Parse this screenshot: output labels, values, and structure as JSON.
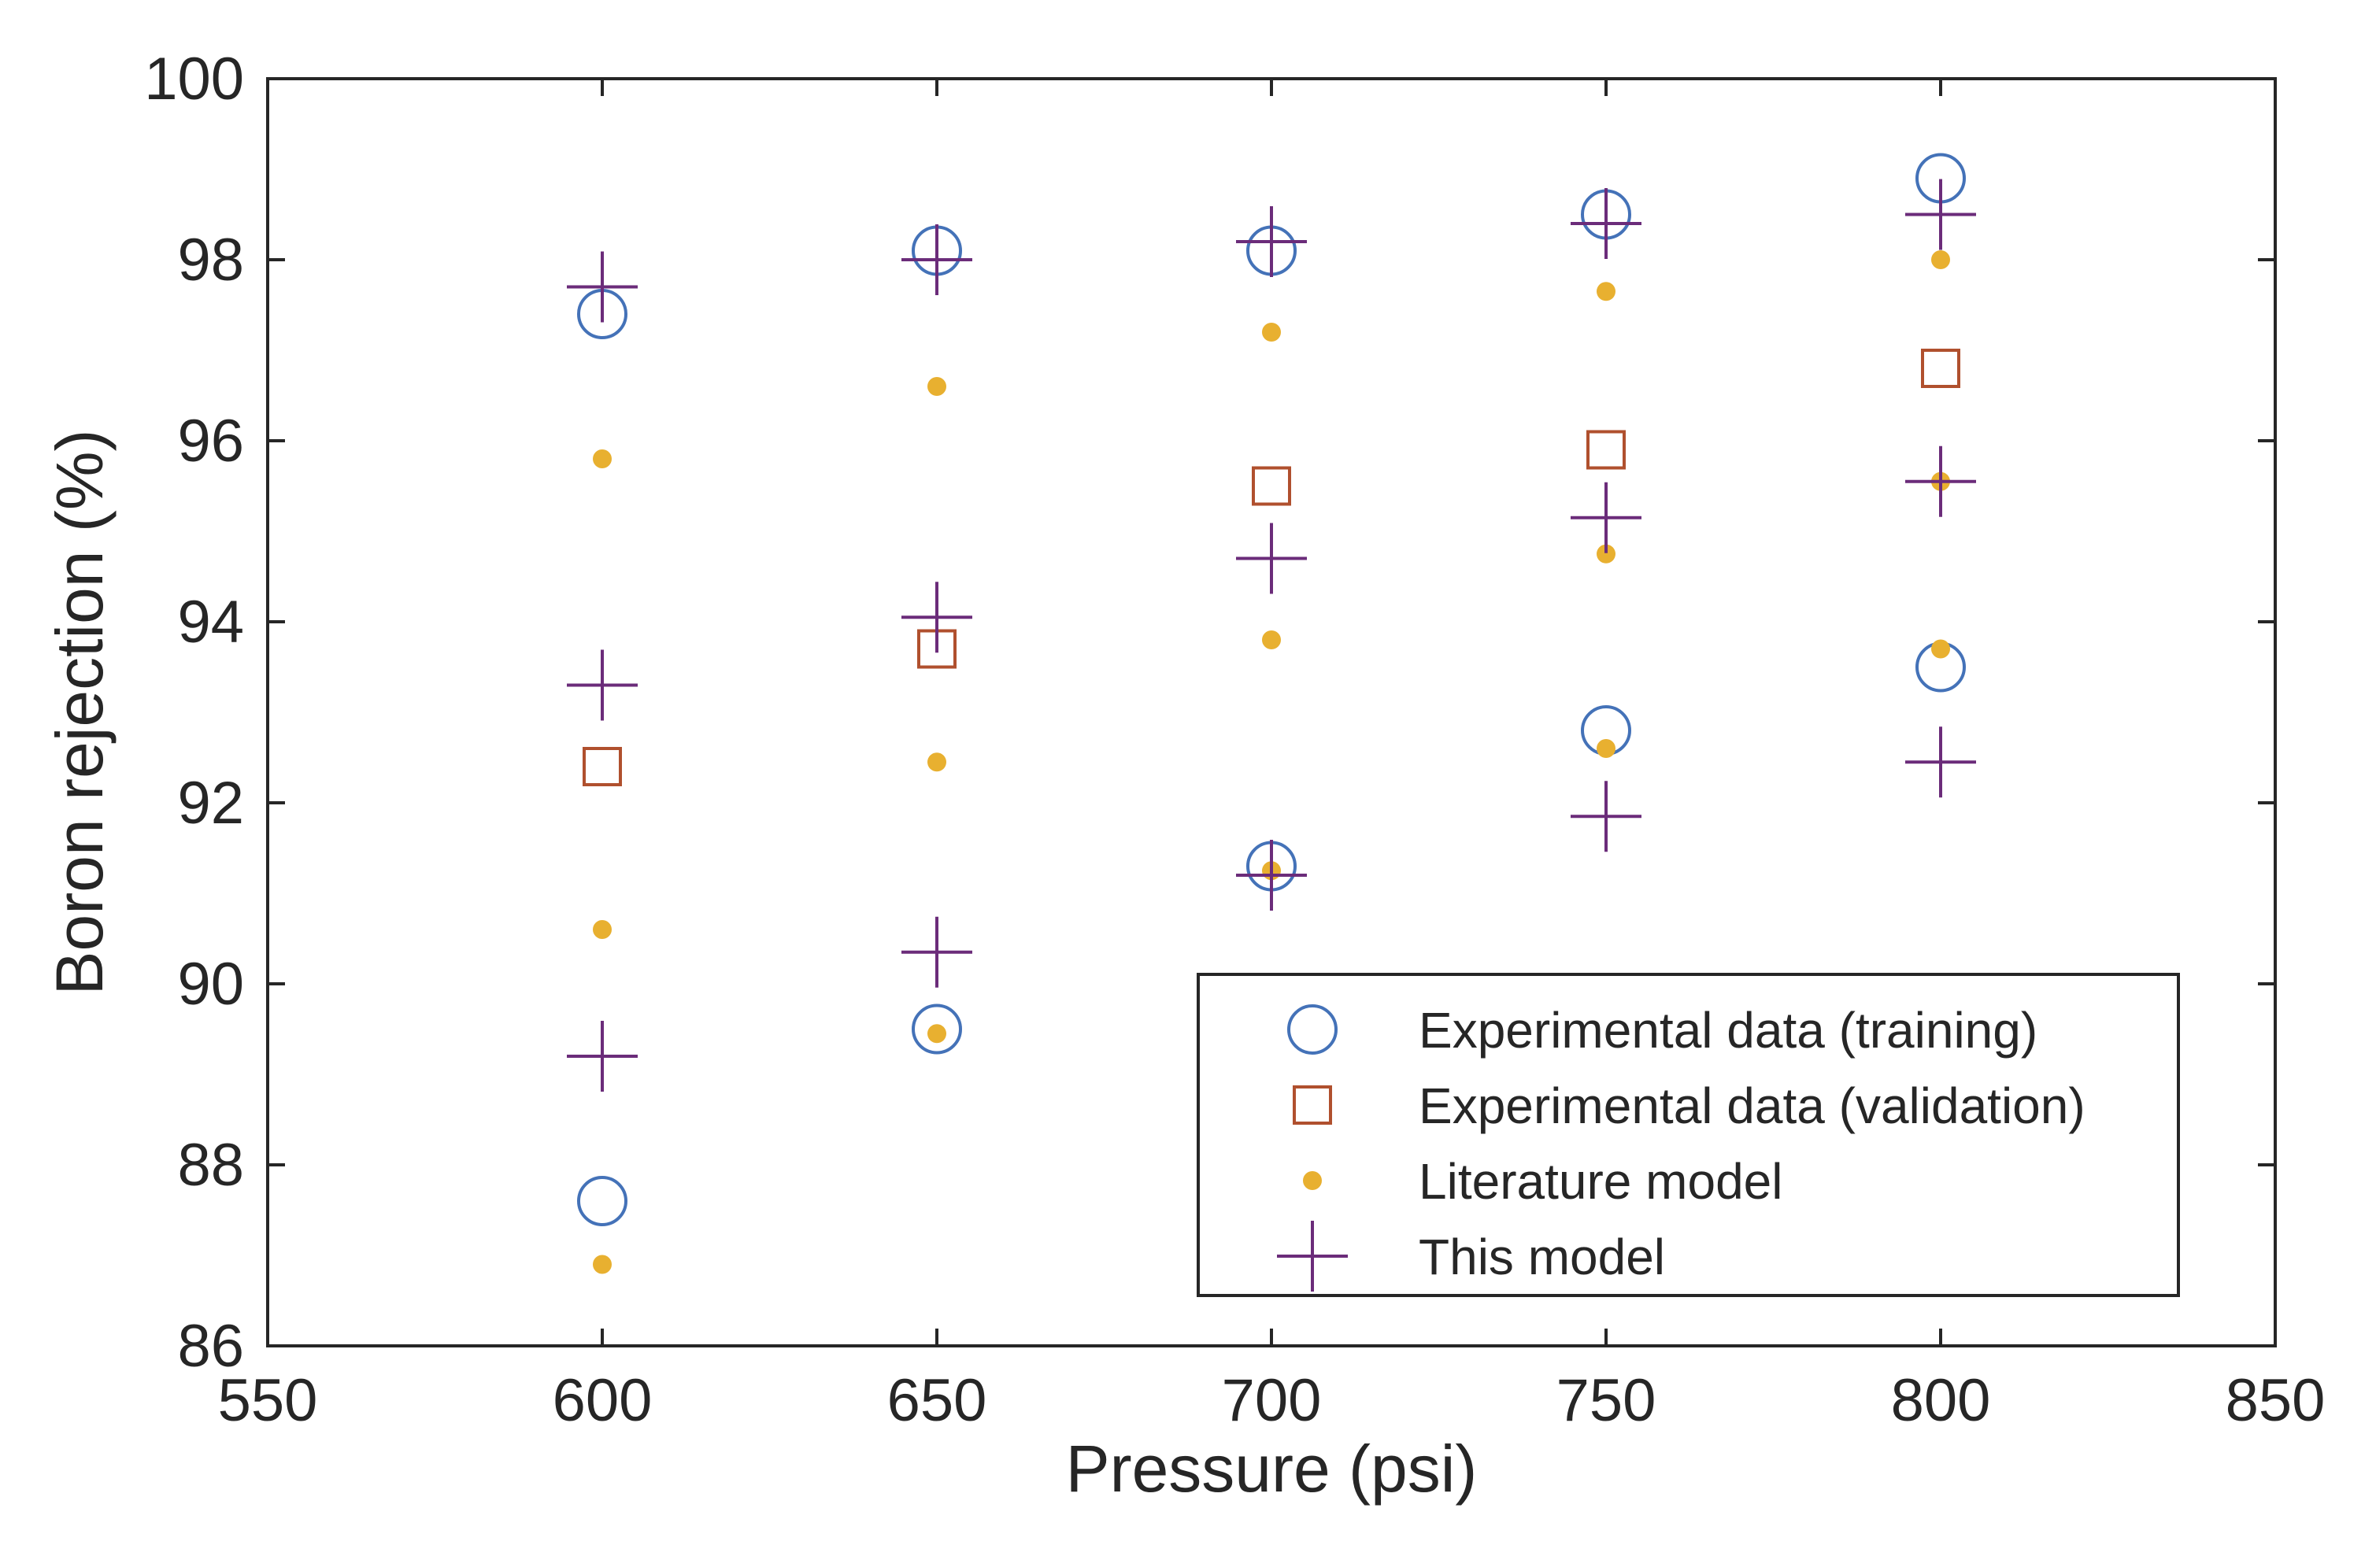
{
  "chart_data": {
    "type": "scatter",
    "title": "",
    "xlabel": "Pressure (psi)",
    "ylabel": "Boron rejection (%)",
    "xlim": [
      550,
      850
    ],
    "ylim": [
      86,
      100
    ],
    "xticks": [
      550,
      600,
      650,
      700,
      750,
      800,
      850
    ],
    "yticks": [
      86,
      88,
      90,
      92,
      94,
      96,
      98,
      100
    ],
    "grid": false,
    "legend_position": "bottom-right",
    "series": [
      {
        "name": "Experimental data (training)",
        "marker": "circle",
        "color": "#4472B8",
        "points": [
          {
            "x": 600,
            "y": 97.4
          },
          {
            "x": 600,
            "y": 87.6
          },
          {
            "x": 650,
            "y": 98.1
          },
          {
            "x": 650,
            "y": 89.5
          },
          {
            "x": 700,
            "y": 98.1
          },
          {
            "x": 700,
            "y": 91.3
          },
          {
            "x": 750,
            "y": 98.5
          },
          {
            "x": 750,
            "y": 92.8
          },
          {
            "x": 800,
            "y": 98.9
          },
          {
            "x": 800,
            "y": 93.5
          }
        ]
      },
      {
        "name": "Experimental data (validation)",
        "marker": "square",
        "color": "#B0502E",
        "points": [
          {
            "x": 600,
            "y": 92.4
          },
          {
            "x": 650,
            "y": 93.7
          },
          {
            "x": 700,
            "y": 95.5
          },
          {
            "x": 750,
            "y": 95.9
          },
          {
            "x": 800,
            "y": 96.8
          }
        ]
      },
      {
        "name": "Literature model",
        "marker": "dot",
        "color": "#E8B030",
        "points": [
          {
            "x": 600,
            "y": 95.8
          },
          {
            "x": 600,
            "y": 90.6
          },
          {
            "x": 600,
            "y": 86.9
          },
          {
            "x": 650,
            "y": 96.6
          },
          {
            "x": 650,
            "y": 92.45
          },
          {
            "x": 650,
            "y": 89.45
          },
          {
            "x": 700,
            "y": 97.2
          },
          {
            "x": 700,
            "y": 93.8
          },
          {
            "x": 700,
            "y": 91.25
          },
          {
            "x": 750,
            "y": 97.65
          },
          {
            "x": 750,
            "y": 94.75
          },
          {
            "x": 750,
            "y": 92.6
          },
          {
            "x": 800,
            "y": 98.0
          },
          {
            "x": 800,
            "y": 95.55
          },
          {
            "x": 800,
            "y": 93.7
          }
        ]
      },
      {
        "name": "This model",
        "marker": "plus",
        "color": "#6B2C7A",
        "points": [
          {
            "x": 600,
            "y": 97.7
          },
          {
            "x": 600,
            "y": 93.3
          },
          {
            "x": 600,
            "y": 89.2
          },
          {
            "x": 650,
            "y": 98.0
          },
          {
            "x": 650,
            "y": 94.05
          },
          {
            "x": 650,
            "y": 90.35
          },
          {
            "x": 700,
            "y": 98.2
          },
          {
            "x": 700,
            "y": 94.7
          },
          {
            "x": 700,
            "y": 91.2
          },
          {
            "x": 750,
            "y": 98.4
          },
          {
            "x": 750,
            "y": 95.15
          },
          {
            "x": 750,
            "y": 91.85
          },
          {
            "x": 800,
            "y": 98.5
          },
          {
            "x": 800,
            "y": 95.55
          },
          {
            "x": 800,
            "y": 92.45
          }
        ]
      }
    ]
  }
}
